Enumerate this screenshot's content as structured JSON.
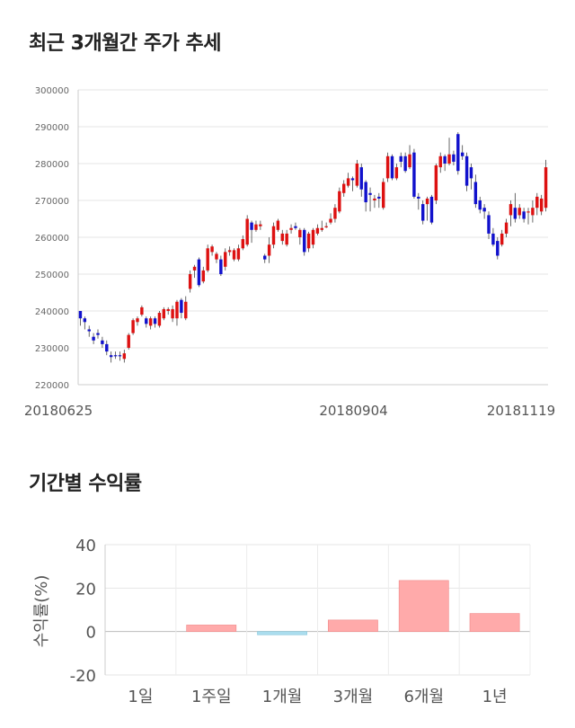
{
  "section1": {
    "title": "최근 3개월간 주가 추세"
  },
  "section2": {
    "title": "기간별 수익률"
  },
  "chart_data": [
    {
      "type": "candlestick",
      "ylim": [
        220000,
        300000
      ],
      "yticks": [
        220000,
        230000,
        240000,
        250000,
        260000,
        270000,
        280000,
        290000,
        300000
      ],
      "xticks": [
        "20180625",
        "20180904",
        "20181119"
      ],
      "colors": {
        "up": "#dd1111",
        "down": "#1111cc"
      },
      "candles": [
        [
          240000,
          238000,
          240000,
          236000
        ],
        [
          238000,
          237000,
          238500,
          235000
        ],
        [
          235000,
          234500,
          236000,
          233000
        ],
        [
          233000,
          232000,
          234000,
          231000
        ],
        [
          234000,
          233500,
          235000,
          232500
        ],
        [
          232000,
          231000,
          233000,
          230000
        ],
        [
          231000,
          229000,
          232000,
          228000
        ],
        [
          228000,
          227500,
          229000,
          226000
        ],
        [
          228000,
          227800,
          229000,
          227000
        ],
        [
          228000,
          227800,
          229000,
          226500
        ],
        [
          227000,
          228500,
          229500,
          226000
        ],
        [
          230000,
          233500,
          234000,
          229500
        ],
        [
          234000,
          237500,
          238000,
          233500
        ],
        [
          237000,
          238000,
          238500,
          236000
        ],
        [
          239000,
          241000,
          241500,
          238500
        ],
        [
          238000,
          236500,
          238500,
          235500
        ],
        [
          236000,
          238000,
          238500,
          235000
        ],
        [
          238000,
          236500,
          238500,
          235500
        ],
        [
          236000,
          239500,
          240000,
          235500
        ],
        [
          238000,
          240500,
          241000,
          237500
        ],
        [
          240000,
          240500,
          241000,
          239000
        ],
        [
          238000,
          240500,
          241500,
          237000
        ],
        [
          238000,
          242500,
          243000,
          236000
        ],
        [
          243000,
          239500,
          243500,
          238000
        ],
        [
          238000,
          242500,
          244000,
          237500
        ],
        [
          246000,
          250000,
          251000,
          245000
        ],
        [
          251000,
          252000,
          252500,
          249000
        ],
        [
          254000,
          247000,
          254500,
          246500
        ],
        [
          248000,
          251000,
          252000,
          247500
        ],
        [
          251000,
          257000,
          258000,
          250500
        ],
        [
          256000,
          257500,
          258000,
          255000
        ],
        [
          254000,
          255500,
          256000,
          253000
        ],
        [
          254000,
          250000,
          255000,
          249500
        ],
        [
          252000,
          256000,
          257000,
          251000
        ],
        [
          256000,
          256500,
          257500,
          255000
        ],
        [
          254000,
          256500,
          257000,
          253500
        ],
        [
          254000,
          257000,
          258000,
          253500
        ],
        [
          257000,
          259500,
          260500,
          256500
        ],
        [
          258000,
          265000,
          266000,
          257500
        ],
        [
          264000,
          262000,
          264500,
          258500
        ],
        [
          262000,
          263500,
          264500,
          261500
        ],
        [
          263000,
          263500,
          264500,
          262000
        ],
        [
          255000,
          254000,
          255500,
          253000
        ],
        [
          255000,
          258000,
          260000,
          253000
        ],
        [
          258000,
          263000,
          264000,
          257000
        ],
        [
          262000,
          264500,
          265000,
          261500
        ],
        [
          259000,
          261000,
          262000,
          258000
        ],
        [
          258000,
          261000,
          262000,
          257500
        ],
        [
          262000,
          262500,
          263500,
          261000
        ],
        [
          263000,
          262500,
          264000,
          262000
        ],
        [
          260000,
          262000,
          262500,
          258000
        ],
        [
          262000,
          256000,
          262500,
          255000
        ],
        [
          257000,
          261000,
          261500,
          256000
        ],
        [
          258000,
          262000,
          262500,
          257000
        ],
        [
          261000,
          262500,
          263500,
          260500
        ],
        [
          262000,
          262500,
          264500,
          261500
        ],
        [
          263000,
          263000,
          264000,
          262500
        ],
        [
          264000,
          265000,
          266500,
          263500
        ],
        [
          265000,
          268000,
          269000,
          264000
        ],
        [
          267000,
          272500,
          273500,
          266500
        ],
        [
          272000,
          274500,
          275500,
          271000
        ],
        [
          274000,
          276000,
          277500,
          273500
        ],
        [
          276000,
          275500,
          276500,
          272500
        ],
        [
          274000,
          280000,
          281000,
          273500
        ],
        [
          279000,
          273000,
          280000,
          271000
        ],
        [
          275000,
          269500,
          275500,
          267000
        ],
        [
          272000,
          271500,
          273500,
          267000
        ],
        [
          270000,
          270500,
          271500,
          268000
        ],
        [
          271000,
          270500,
          272000,
          268000
        ],
        [
          268000,
          275000,
          276000,
          267500
        ],
        [
          276000,
          282000,
          283000,
          275000
        ],
        [
          282000,
          276000,
          282500,
          275500
        ],
        [
          276000,
          279000,
          280000,
          275500
        ],
        [
          282000,
          280500,
          283000,
          279000
        ],
        [
          282000,
          278000,
          283000,
          277500
        ],
        [
          279000,
          282500,
          285000,
          278500
        ],
        [
          283000,
          271000,
          284000,
          270500
        ],
        [
          271000,
          270500,
          272000,
          267500
        ],
        [
          269000,
          264500,
          270000,
          263500
        ],
        [
          269000,
          270500,
          271000,
          264500
        ],
        [
          271000,
          264000,
          271500,
          263500
        ],
        [
          270000,
          279500,
          280000,
          269000
        ],
        [
          279000,
          282000,
          283000,
          277500
        ],
        [
          282000,
          280000,
          282500,
          278000
        ],
        [
          280000,
          282500,
          287000,
          279500
        ],
        [
          282500,
          280500,
          283500,
          279500
        ],
        [
          288000,
          278000,
          288500,
          277000
        ],
        [
          283000,
          282000,
          285000,
          281000
        ],
        [
          282000,
          274000,
          283000,
          272500
        ],
        [
          279000,
          276000,
          280000,
          273000
        ],
        [
          275000,
          269000,
          277000,
          268000
        ],
        [
          270000,
          267500,
          271000,
          266500
        ],
        [
          268000,
          267000,
          269000,
          265000
        ],
        [
          266000,
          261000,
          267000,
          259500
        ],
        [
          261000,
          258000,
          262500,
          257500
        ],
        [
          259000,
          255000,
          260000,
          254000
        ],
        [
          258000,
          261000,
          262000,
          257500
        ],
        [
          261000,
          264000,
          265000,
          260000
        ],
        [
          266000,
          269000,
          270000,
          263000
        ],
        [
          268000,
          265000,
          272000,
          264000
        ],
        [
          266000,
          268000,
          269000,
          265000
        ],
        [
          267000,
          265000,
          268000,
          264000
        ],
        [
          267000,
          267000,
          268000,
          263500
        ],
        [
          266000,
          268000,
          270000,
          264000
        ],
        [
          268000,
          271000,
          272000,
          266000
        ],
        [
          267000,
          270500,
          271500,
          266000
        ],
        [
          268000,
          279000,
          281000,
          267000
        ]
      ]
    },
    {
      "type": "bar",
      "categories": [
        "1일",
        "1주일",
        "1개월",
        "3개월",
        "6개월",
        "1년"
      ],
      "values": [
        0,
        3.0,
        -1.5,
        5.3,
        23.5,
        8.3
      ],
      "ylabel": "수익률(%)",
      "ylim": [
        -20,
        40
      ],
      "yticks": [
        -20,
        0,
        20,
        40
      ],
      "colors": {
        "positive": "#ffaaaa",
        "negative": "#aaddee"
      }
    }
  ]
}
